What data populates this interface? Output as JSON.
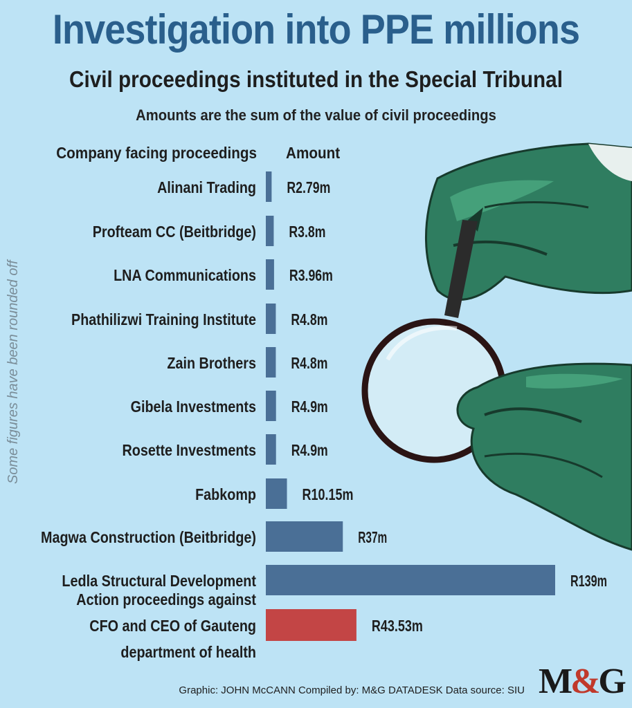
{
  "title": "Investigation into PPE millions",
  "subtitle": "Civil proceedings instituted in the Special Tribunal",
  "note": "Amounts are the sum of the value of civil proceedings",
  "side_note": "Some figures have been rounded off",
  "footer": "Graphic: JOHN McCANN  Compiled by: M&G DATADESK  Data source: SIU",
  "logo": {
    "left": "M",
    "amp": "&",
    "right": "G"
  },
  "colors": {
    "bar": "#4a6f96",
    "highlight": "#c34545",
    "title": "#2a5f8c",
    "background": "#bde3f5"
  },
  "chart_data": {
    "type": "bar",
    "orientation": "horizontal",
    "column_headers": [
      "Company facing proceedings",
      "Amount"
    ],
    "categories": [
      [
        "Alinani Trading"
      ],
      [
        "Profteam CC (Beitbridge)"
      ],
      [
        "LNA Communications"
      ],
      [
        "Phathilizwi Training Institute"
      ],
      [
        "Zain Brothers"
      ],
      [
        "Gibela Investments"
      ],
      [
        "Rosette Investments"
      ],
      [
        "Fabkomp"
      ],
      [
        "Magwa Construction (Beitbridge)"
      ],
      [
        "Ledla Structural Development"
      ],
      [
        "Action proceedings against",
        "CFO and CEO of Gauteng",
        "department of health"
      ]
    ],
    "values": [
      2.79,
      3.8,
      3.96,
      4.8,
      4.8,
      4.9,
      4.9,
      10.15,
      37,
      139,
      43.53
    ],
    "labels": [
      "R2.79m",
      "R3.8m",
      "R3.96m",
      "R4.8m",
      "R4.8m",
      "R4.9m",
      "R4.9m",
      "R10.15m",
      "R37m",
      "R139m",
      "R43.53m"
    ],
    "highlight_index": 10,
    "unit": "R millions"
  }
}
